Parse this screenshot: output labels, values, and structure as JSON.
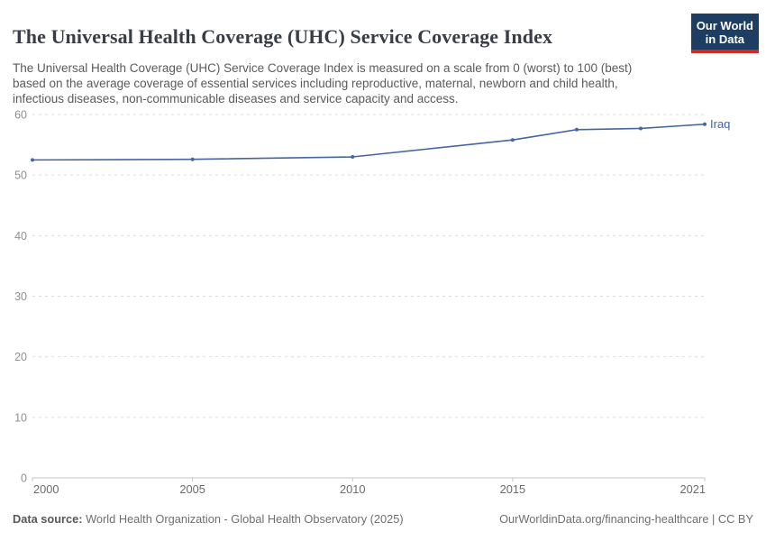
{
  "header": {
    "title": "The Universal Health Coverage (UHC) Service Coverage Index",
    "subtitle": "The Universal Health Coverage (UHC) Service Coverage Index is measured on a scale from 0 (worst) to 100 (best) based on the average coverage of essential services including reproductive, maternal, newborn and child health, infectious diseases, non-communicable diseases and service capacity and access.",
    "logo": {
      "line1": "Our World",
      "line2": "in Data",
      "bg_color": "#1d3d63",
      "accent_color": "#cf2d24",
      "text_color": "#ffffff"
    }
  },
  "chart_data": {
    "type": "line",
    "title": "The Universal Health Coverage (UHC) Service Coverage Index",
    "x": [
      2000,
      2005,
      2010,
      2015,
      2017,
      2019,
      2021
    ],
    "series": [
      {
        "name": "Iraq",
        "values": [
          52.5,
          52.6,
          53.0,
          55.8,
          57.5,
          57.7,
          58.4
        ],
        "color": "#4565a5",
        "label_color": "#3c63ae"
      }
    ],
    "xlabel": "",
    "ylabel": "",
    "xlim": [
      2000,
      2021
    ],
    "ylim": [
      0,
      60
    ],
    "yticks": [
      0,
      10,
      20,
      30,
      40,
      50,
      60
    ],
    "xticks": [
      2000,
      2005,
      2010,
      2015,
      2021
    ],
    "grid": "horizontal dashed gridlines on",
    "legend": "series label at end of line",
    "marker": "filled circle on each data point"
  },
  "chart_style": {
    "gridline_color": "#dcdcdc",
    "axis_color": "#c6c6c6",
    "ytick_label_color": "#8f8f8f",
    "xtick_label_color": "#6b6b6b"
  },
  "footer": {
    "datasource_label": "Data source:",
    "datasource_text": " World Health Organization - Global Health Observatory (2025)",
    "link_text": "OurWorldinData.org/financing-healthcare | CC BY"
  }
}
